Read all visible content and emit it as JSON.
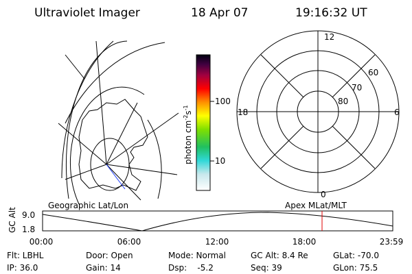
{
  "header": {
    "title": "Ultraviolet Imager",
    "date": "18 Apr 07",
    "time": "19:16:32 UT"
  },
  "colorbar": {
    "label": {
      "base": "photon cm",
      "exp1": "-2",
      "unit2": "s",
      "exp2": "-1"
    },
    "ticks": [
      "100",
      "10"
    ]
  },
  "polar_plot": {
    "mlt_labels": {
      "top": "12",
      "bottom": "0",
      "left": "18",
      "right": "6"
    },
    "lat_labels": [
      "60",
      "70",
      "80"
    ]
  },
  "altitude_plot": {
    "left_label": "Geographic Lat/Lon",
    "right_label": "Apex MLat/MLT",
    "y_label": "GC Alt",
    "y_ticks": [
      "9.0",
      "1.8"
    ],
    "x_ticks": [
      "00:00",
      "06:00",
      "12:00",
      "18:00",
      "23:59"
    ]
  },
  "status": {
    "rows": [
      [
        "Flt: LBHL",
        "Door: Open",
        "Mode: Normal",
        "GC Alt: 8.4 Re",
        "GLat: -70.0"
      ],
      [
        "IP: 36.0",
        "Gain: 14",
        "Dsp:    -5.2",
        "Seq: 39",
        "GLon: 75.5"
      ]
    ]
  }
}
